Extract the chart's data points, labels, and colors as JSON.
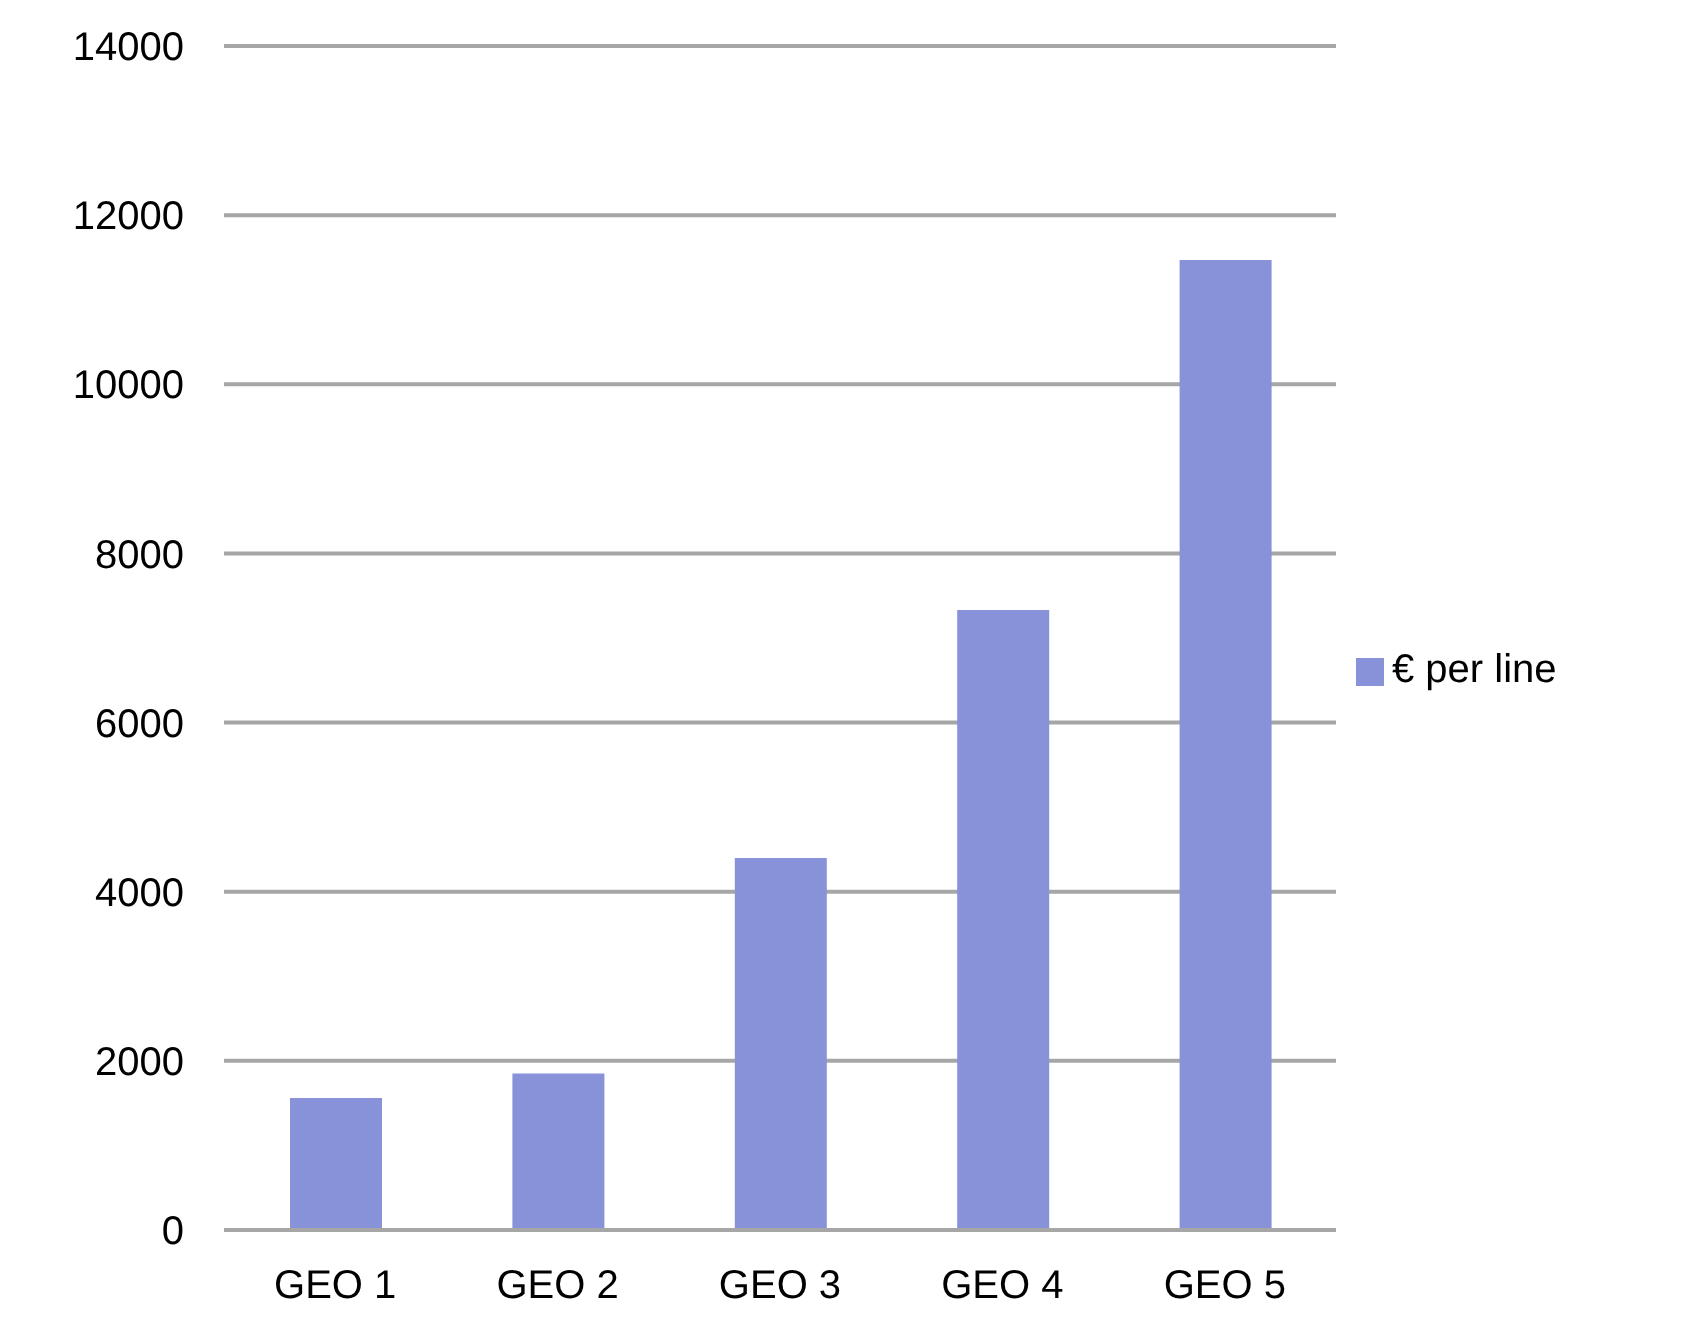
{
  "chart_data": {
    "type": "bar",
    "categories": [
      "GEO 1",
      "GEO 2",
      "GEO 3",
      "GEO 4",
      "GEO 5"
    ],
    "series": [
      {
        "name": "€ per line",
        "color": "#8892d9",
        "values": [
          1560,
          1850,
          4400,
          7330,
          11470
        ]
      }
    ],
    "ylim": [
      0,
      14000
    ],
    "yticks": [
      0,
      2000,
      4000,
      6000,
      8000,
      10000,
      12000,
      14000
    ],
    "grid": "y",
    "legend": "right"
  }
}
